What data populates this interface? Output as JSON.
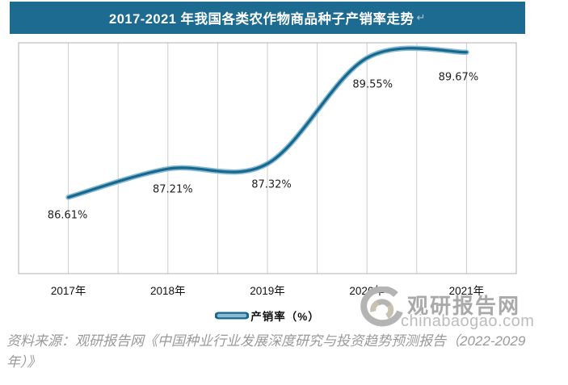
{
  "title": {
    "text": "2017-2021 年我国各类农作物商品种子产销率走势",
    "return_mark": "↵"
  },
  "chart_data": {
    "type": "line",
    "smooth": true,
    "categories": [
      "2017年",
      "2018年",
      "2019年",
      "2020年",
      "2021年"
    ],
    "series": [
      {
        "name": "产销率（%）",
        "values": [
          86.61,
          87.21,
          87.32,
          89.55,
          89.67
        ]
      }
    ],
    "data_labels": [
      "86.61%",
      "87.21%",
      "87.32%",
      "89.55%",
      "89.67%"
    ],
    "ylim": [
      85.0,
      89.87
    ],
    "grid": "vertical-only",
    "legend_position": "bottom",
    "title": "2017-2021 年我国各类农作物商品种子产销率走势"
  },
  "legend": {
    "label": "产销率（%）"
  },
  "watermark": {
    "brand": "观研报告网",
    "domain": "chinabaogao.com"
  },
  "source_note": "资料来源：观研报告网《中国种业行业发展深度研究与投资趋势预测报告（2022-2029年）》",
  "colors": {
    "header_bg": "#1e6b92",
    "line_core": "#17688f",
    "line_highlight": "#8abbd3",
    "gridline": "#cccccc",
    "plot_border": "#b1b1b1",
    "watermark_gray": "#b4b4b4",
    "watermark_beige": "#c9c2b2"
  }
}
